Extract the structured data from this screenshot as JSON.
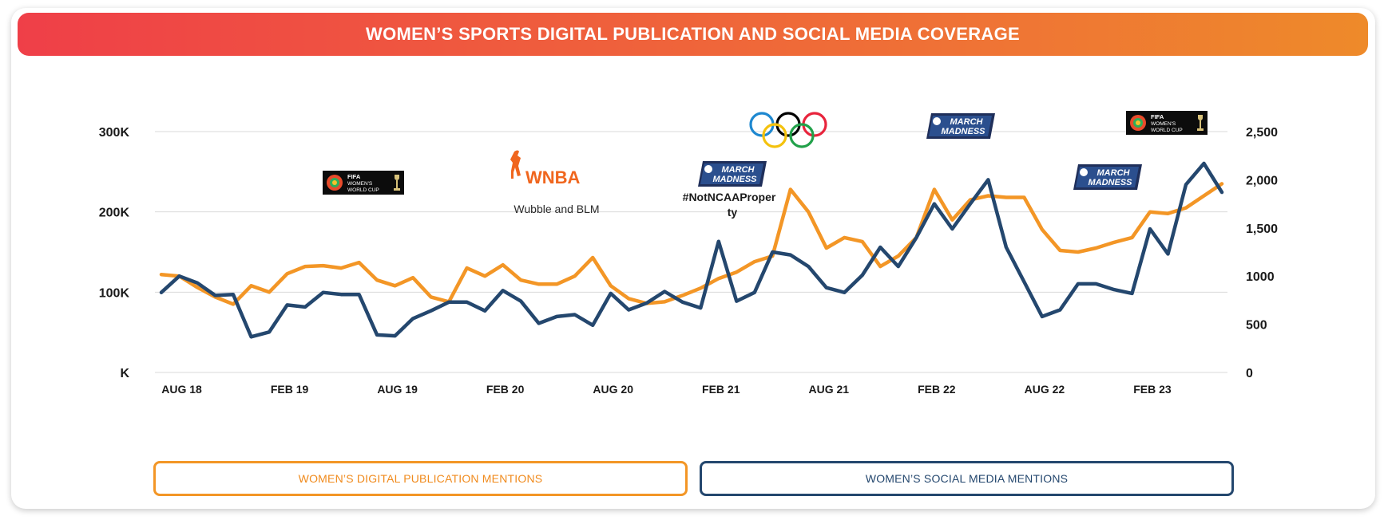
{
  "title": "WOMEN’S SPORTS DIGITAL PUBLICATION AND SOCIAL MEDIA COVERAGE",
  "colors": {
    "publication": "#f39626",
    "social": "#24476e",
    "grid": "#d9d9d9",
    "axis_text": "#1a1a1a"
  },
  "legend": {
    "publication": "WOMEN’S DIGITAL PUBLICATION MENTIONS",
    "social": "WOMEN’S SOCIAL MEDIA MENTIONS"
  },
  "annotations": {
    "fifa_2019": {
      "logo": "fifa-womens-world-cup-logo",
      "line1": "FIFA",
      "line2": "WOMEN'S",
      "line3": "WORLD CUP"
    },
    "wnba": {
      "logo": "wnba-logo",
      "wordmark": "WNBA",
      "caption": "Wubble and BLM"
    },
    "march_madness_2021": {
      "logo": "march-madness-logo",
      "line1": "MARCH",
      "line2": "MADNESS",
      "caption_line1": "#NotNCAAProper",
      "caption_line2": "ty"
    },
    "olympics": {
      "logo": "olympic-rings-logo"
    },
    "march_madness_2022": {
      "logo": "march-madness-logo",
      "line1": "MARCH",
      "line2": "MADNESS"
    },
    "march_madness_2023": {
      "logo": "march-madness-logo",
      "line1": "MARCH",
      "line2": "MADNESS"
    },
    "fifa_2023": {
      "logo": "fifa-womens-world-cup-logo",
      "line1": "FIFA",
      "line2": "WOMEN'S",
      "line3": "WORLD CUP"
    }
  },
  "chart_data": {
    "type": "line",
    "title": "WOMEN’S SPORTS DIGITAL PUBLICATION AND SOCIAL MEDIA COVERAGE",
    "x_tick_labels": [
      "AUG 18",
      "FEB 19",
      "AUG 19",
      "FEB 20",
      "AUG 20",
      "FEB 21",
      "AUG 21",
      "FEB 22",
      "AUG 22",
      "FEB 23"
    ],
    "x_range": [
      "Jul 2018",
      "Jul 2023"
    ],
    "grid": true,
    "legend_placement": "bottom",
    "y_left": {
      "ticks": [
        "K",
        "100K",
        "200K",
        "300K"
      ],
      "range": [
        0,
        300000
      ]
    },
    "y_right": {
      "ticks": [
        "0",
        "500",
        "1000",
        "1,500",
        "2,000",
        "2,500"
      ],
      "range": [
        0,
        2500
      ]
    },
    "series": [
      {
        "name": "WOMEN’S DIGITAL PUBLICATION MENTIONS",
        "axis": "left",
        "values": [
          122000,
          120000,
          106000,
          94000,
          85000,
          108000,
          100000,
          123000,
          132000,
          133000,
          130000,
          137000,
          115000,
          108000,
          118000,
          94000,
          88000,
          130000,
          120000,
          134000,
          115000,
          110000,
          110000,
          120000,
          143000,
          108000,
          92000,
          86000,
          88000,
          96000,
          105000,
          117000,
          125000,
          138000,
          145000,
          228000,
          200000,
          155000,
          168000,
          163000,
          132000,
          145000,
          168000,
          228000,
          190000,
          215000,
          220000,
          218000,
          218000,
          178000,
          152000,
          150000,
          155000,
          162000,
          168000,
          200000,
          198000,
          205000,
          220000,
          235000
        ],
        "visible_range": [
          0,
          59
        ]
      },
      {
        "name": "WOMEN’S SOCIAL MEDIA MENTIONS",
        "axis": "right",
        "values": [
          830,
          1000,
          930,
          800,
          810,
          370,
          420,
          700,
          680,
          830,
          810,
          810,
          390,
          380,
          560,
          640,
          730,
          730,
          640,
          850,
          740,
          510,
          580,
          600,
          490,
          820,
          650,
          720,
          840,
          730,
          670,
          1360,
          740,
          830,
          1250,
          1220,
          1100,
          880,
          830,
          1010,
          1300,
          1100,
          1400,
          1750,
          1490,
          1750,
          2000,
          1300,
          940,
          580,
          650,
          920,
          920,
          860,
          820,
          1490,
          1230,
          1950,
          2170,
          1870
        ],
        "visible_range": [
          0,
          59
        ]
      }
    ]
  }
}
